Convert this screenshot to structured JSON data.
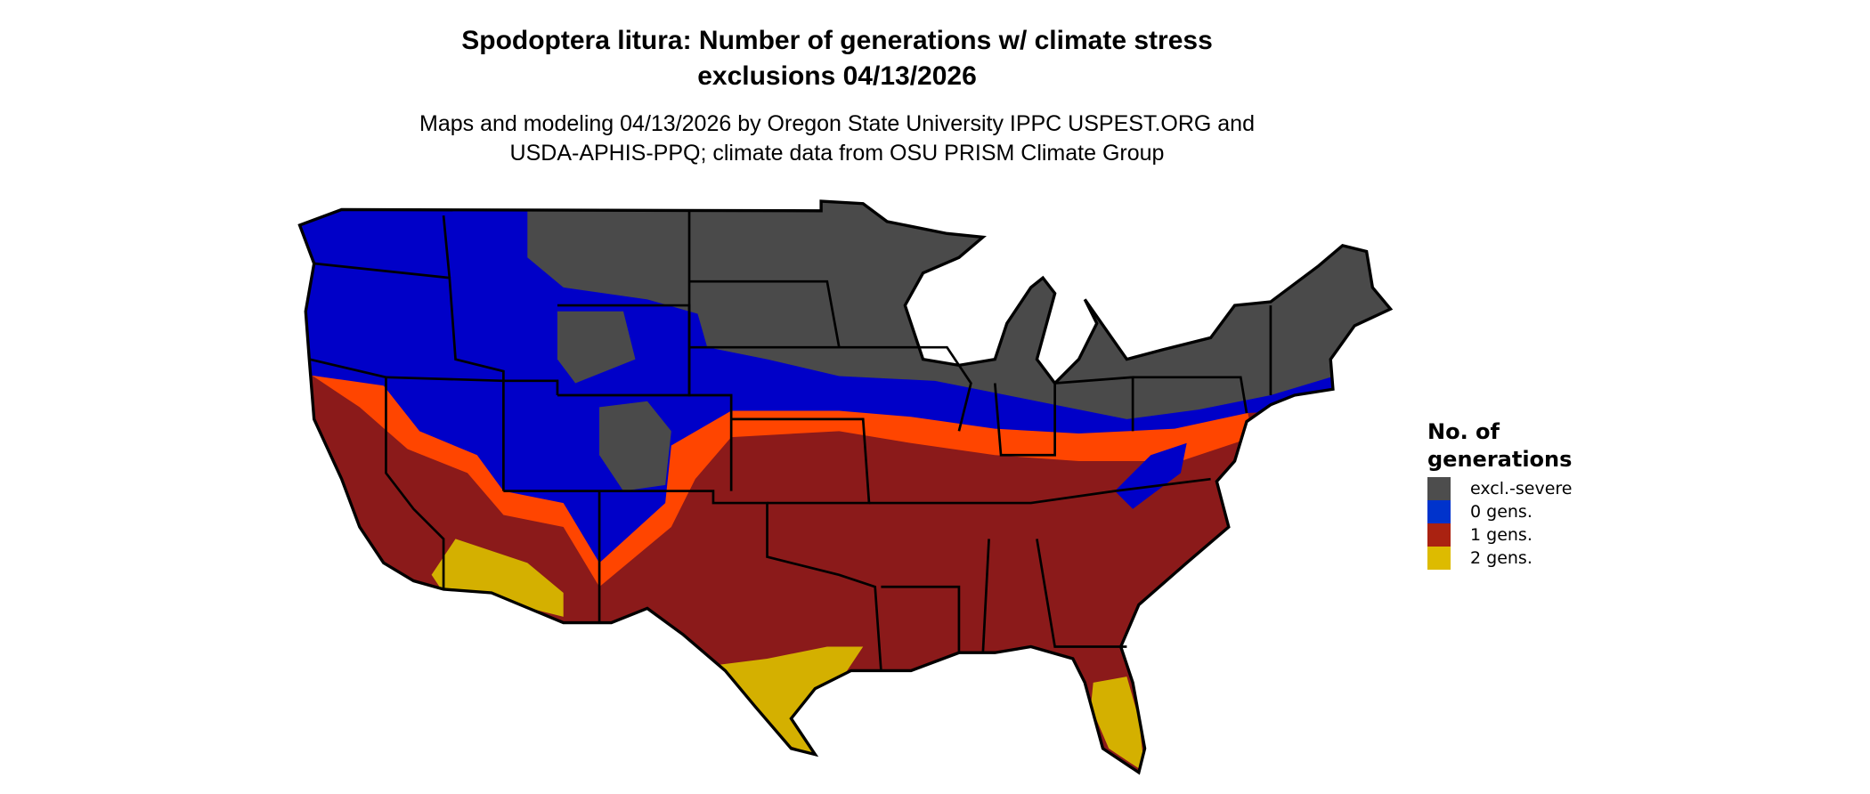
{
  "title": {
    "line1": "Spodoptera litura: Number of generations w/ climate stress",
    "line2": "exclusions 04/13/2026"
  },
  "subtitle": {
    "line1": "Maps and modeling 04/13/2026 by Oregon State University IPPC USPEST.ORG and",
    "line2": "USDA-APHIS-PPQ; climate data from OSU PRISM Climate Group"
  },
  "map": {
    "region": "Contiguous United States",
    "colors": {
      "excl_severe": "#4a4a4a",
      "gen0": "#0000c8",
      "gen1": "#8b1a1a",
      "gen1_edge": "#ff4500",
      "gen2": "#d4b000",
      "border": "#000000"
    }
  },
  "legend": {
    "title_line1": "No. of",
    "title_line2": "generations",
    "items": [
      {
        "label": "excl.-severe",
        "color": "#4d4d4d"
      },
      {
        "label": "0 gens.",
        "color": "#0033cc"
      },
      {
        "label": "1 gens.",
        "color": "#aa2211"
      },
      {
        "label": "2 gens.",
        "color": "#ddbb00"
      }
    ]
  }
}
